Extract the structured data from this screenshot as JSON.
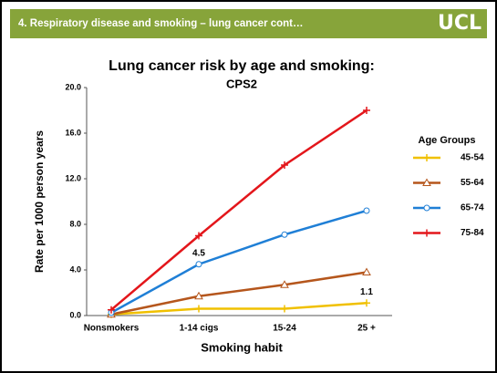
{
  "header": {
    "title": "4. Respiratory disease and smoking – lung cancer cont…",
    "logo": "UCL"
  },
  "chart_data": {
    "type": "line",
    "title": "Lung cancer risk by age and smoking:",
    "subtitle": "CPS2",
    "x_label": "Smoking habit",
    "y_label": "Rate per 1000 person years",
    "legend_title": "Age Groups",
    "legend": "right",
    "categories": [
      "Nonsmokers",
      "1-14 cigs",
      "15-24",
      "25 +"
    ],
    "ylim": [
      0,
      20
    ],
    "yticks": [
      {
        "value": 0,
        "label": "0.0"
      },
      {
        "value": 4,
        "label": "4.0"
      },
      {
        "value": 8,
        "label": "8.0"
      },
      {
        "value": 12,
        "label": "12.0"
      },
      {
        "value": 16,
        "label": "16.0"
      },
      {
        "value": 20,
        "label": "20.0"
      }
    ],
    "series": [
      {
        "name": "45-54",
        "color": "#f0c000",
        "marker": "plus",
        "values": [
          0.1,
          0.6,
          0.6,
          1.1
        ],
        "value_labels": [
          null,
          null,
          null,
          "1.1"
        ]
      },
      {
        "name": "55-64",
        "color": "#b5561c",
        "marker": "triangle",
        "values": [
          0.1,
          1.7,
          2.7,
          3.8
        ]
      },
      {
        "name": "65-74",
        "color": "#1f7fd6",
        "marker": "circle",
        "values": [
          0.25,
          4.5,
          7.1,
          9.2
        ],
        "value_labels": [
          null,
          "4.5",
          null,
          null
        ]
      },
      {
        "name": "75-84",
        "color": "#e3161b",
        "marker": "plus",
        "values": [
          0.5,
          7.0,
          13.2,
          18.0
        ]
      }
    ]
  }
}
